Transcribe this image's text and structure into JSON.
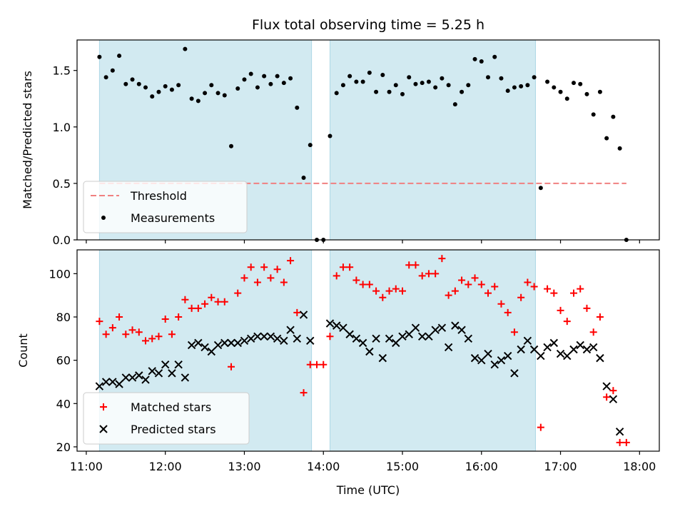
{
  "title": "Flux total observing time = 5.25 h",
  "xlabel": "Time (UTC)",
  "x_ticks": [
    "11:00",
    "12:00",
    "13:00",
    "14:00",
    "15:00",
    "16:00",
    "17:00",
    "18:00"
  ],
  "shade_color": "#add8e6",
  "shaded_intervals": [
    [
      "11:10",
      "13:51"
    ],
    [
      "14:05",
      "16:41"
    ]
  ],
  "chart_data": [
    {
      "type": "scatter",
      "ylabel": "Matched/Predicted stars",
      "xlim": [
        "10:53",
        "18:15"
      ],
      "ylim": [
        0,
        1.77
      ],
      "y_ticks": [
        "0.0",
        "0.5",
        "1.0",
        "1.5"
      ],
      "y_tick_values": [
        0,
        0.5,
        1.0,
        1.5
      ],
      "legend": "lower-left",
      "threshold": {
        "name": "Threshold",
        "value": 0.5,
        "x_range": [
          "11:10",
          "17:50"
        ],
        "color": "#f08080"
      },
      "series": [
        {
          "name": "Measurements",
          "marker": "dot",
          "color": "#000000",
          "points": [
            [
              "11:10",
              1.62
            ],
            [
              "11:15",
              1.44
            ],
            [
              "11:20",
              1.5
            ],
            [
              "11:25",
              1.63
            ],
            [
              "11:30",
              1.38
            ],
            [
              "11:35",
              1.42
            ],
            [
              "11:40",
              1.38
            ],
            [
              "11:45",
              1.35
            ],
            [
              "11:50",
              1.27
            ],
            [
              "11:55",
              1.31
            ],
            [
              "12:00",
              1.36
            ],
            [
              "12:05",
              1.33
            ],
            [
              "12:10",
              1.37
            ],
            [
              "12:15",
              1.69
            ],
            [
              "12:20",
              1.25
            ],
            [
              "12:25",
              1.23
            ],
            [
              "12:30",
              1.3
            ],
            [
              "12:35",
              1.37
            ],
            [
              "12:40",
              1.3
            ],
            [
              "12:45",
              1.28
            ],
            [
              "12:50",
              0.83
            ],
            [
              "12:55",
              1.34
            ],
            [
              "13:00",
              1.42
            ],
            [
              "13:05",
              1.47
            ],
            [
              "13:10",
              1.35
            ],
            [
              "13:15",
              1.45
            ],
            [
              "13:20",
              1.38
            ],
            [
              "13:25",
              1.45
            ],
            [
              "13:30",
              1.39
            ],
            [
              "13:35",
              1.43
            ],
            [
              "13:40",
              1.17
            ],
            [
              "13:45",
              0.55
            ],
            [
              "13:50",
              0.84
            ],
            [
              "13:55",
              0.0
            ],
            [
              "14:00",
              0.0
            ],
            [
              "14:05",
              0.92
            ],
            [
              "14:10",
              1.3
            ],
            [
              "14:15",
              1.37
            ],
            [
              "14:20",
              1.45
            ],
            [
              "14:25",
              1.4
            ],
            [
              "14:30",
              1.4
            ],
            [
              "14:35",
              1.48
            ],
            [
              "14:40",
              1.31
            ],
            [
              "14:45",
              1.46
            ],
            [
              "14:50",
              1.31
            ],
            [
              "14:55",
              1.37
            ],
            [
              "15:00",
              1.29
            ],
            [
              "15:05",
              1.44
            ],
            [
              "15:10",
              1.38
            ],
            [
              "15:15",
              1.39
            ],
            [
              "15:20",
              1.4
            ],
            [
              "15:25",
              1.35
            ],
            [
              "15:30",
              1.43
            ],
            [
              "15:35",
              1.37
            ],
            [
              "15:40",
              1.2
            ],
            [
              "15:45",
              1.31
            ],
            [
              "15:50",
              1.37
            ],
            [
              "15:55",
              1.6
            ],
            [
              "16:00",
              1.58
            ],
            [
              "16:05",
              1.44
            ],
            [
              "16:10",
              1.62
            ],
            [
              "16:15",
              1.43
            ],
            [
              "16:20",
              1.32
            ],
            [
              "16:25",
              1.35
            ],
            [
              "16:30",
              1.36
            ],
            [
              "16:35",
              1.37
            ],
            [
              "16:40",
              1.44
            ],
            [
              "16:45",
              0.46
            ],
            [
              "16:50",
              1.4
            ],
            [
              "16:55",
              1.35
            ],
            [
              "17:00",
              1.31
            ],
            [
              "17:05",
              1.25
            ],
            [
              "17:10",
              1.39
            ],
            [
              "17:15",
              1.38
            ],
            [
              "17:20",
              1.29
            ],
            [
              "17:25",
              1.11
            ],
            [
              "17:30",
              1.31
            ],
            [
              "17:35",
              0.9
            ],
            [
              "17:40",
              1.09
            ],
            [
              "17:45",
              0.81
            ],
            [
              "17:50",
              0.0
            ]
          ]
        }
      ]
    },
    {
      "type": "scatter",
      "ylabel": "Count",
      "xlim": [
        "10:53",
        "18:15"
      ],
      "ylim": [
        18,
        111
      ],
      "y_ticks": [
        "20",
        "40",
        "60",
        "80",
        "100"
      ],
      "y_tick_values": [
        20,
        40,
        60,
        80,
        100
      ],
      "legend": "lower-left",
      "series": [
        {
          "name": "Matched stars",
          "marker": "plus",
          "color": "#ff0000",
          "points": [
            [
              "11:10",
              78
            ],
            [
              "11:15",
              72
            ],
            [
              "11:20",
              75
            ],
            [
              "11:25",
              80
            ],
            [
              "11:30",
              72
            ],
            [
              "11:35",
              74
            ],
            [
              "11:40",
              73
            ],
            [
              "11:45",
              69
            ],
            [
              "11:50",
              70
            ],
            [
              "11:55",
              71
            ],
            [
              "12:00",
              79
            ],
            [
              "12:05",
              72
            ],
            [
              "12:10",
              80
            ],
            [
              "12:15",
              88
            ],
            [
              "12:20",
              84
            ],
            [
              "12:25",
              84
            ],
            [
              "12:30",
              86
            ],
            [
              "12:35",
              89
            ],
            [
              "12:40",
              87
            ],
            [
              "12:45",
              87
            ],
            [
              "12:50",
              57
            ],
            [
              "12:55",
              91
            ],
            [
              "13:00",
              98
            ],
            [
              "13:05",
              103
            ],
            [
              "13:10",
              96
            ],
            [
              "13:15",
              103
            ],
            [
              "13:20",
              98
            ],
            [
              "13:25",
              102
            ],
            [
              "13:30",
              96
            ],
            [
              "13:35",
              106
            ],
            [
              "13:40",
              82
            ],
            [
              "13:45",
              45
            ],
            [
              "13:50",
              58
            ],
            [
              "13:55",
              58
            ],
            [
              "14:00",
              58
            ],
            [
              "14:05",
              71
            ],
            [
              "14:10",
              99
            ],
            [
              "14:15",
              103
            ],
            [
              "14:20",
              103
            ],
            [
              "14:25",
              97
            ],
            [
              "14:30",
              95
            ],
            [
              "14:35",
              95
            ],
            [
              "14:40",
              92
            ],
            [
              "14:45",
              89
            ],
            [
              "14:50",
              92
            ],
            [
              "14:55",
              93
            ],
            [
              "15:00",
              92
            ],
            [
              "15:05",
              104
            ],
            [
              "15:10",
              104
            ],
            [
              "15:15",
              99
            ],
            [
              "15:20",
              100
            ],
            [
              "15:25",
              100
            ],
            [
              "15:30",
              107
            ],
            [
              "15:35",
              90
            ],
            [
              "15:40",
              92
            ],
            [
              "15:45",
              97
            ],
            [
              "15:50",
              95
            ],
            [
              "15:55",
              98
            ],
            [
              "16:00",
              95
            ],
            [
              "16:05",
              91
            ],
            [
              "16:10",
              94
            ],
            [
              "16:15",
              86
            ],
            [
              "16:20",
              82
            ],
            [
              "16:25",
              73
            ],
            [
              "16:30",
              89
            ],
            [
              "16:35",
              96
            ],
            [
              "16:40",
              94
            ],
            [
              "16:45",
              29
            ],
            [
              "16:50",
              93
            ],
            [
              "16:55",
              91
            ],
            [
              "17:00",
              83
            ],
            [
              "17:05",
              78
            ],
            [
              "17:10",
              91
            ],
            [
              "17:15",
              93
            ],
            [
              "17:20",
              84
            ],
            [
              "17:25",
              73
            ],
            [
              "17:30",
              80
            ],
            [
              "17:35",
              43
            ],
            [
              "17:40",
              46
            ],
            [
              "17:45",
              22
            ],
            [
              "17:50",
              22
            ]
          ]
        },
        {
          "name": "Predicted stars",
          "marker": "x",
          "color": "#000000",
          "points": [
            [
              "11:10",
              48
            ],
            [
              "11:15",
              50
            ],
            [
              "11:20",
              50
            ],
            [
              "11:25",
              49
            ],
            [
              "11:30",
              52
            ],
            [
              "11:35",
              52
            ],
            [
              "11:40",
              53
            ],
            [
              "11:45",
              51
            ],
            [
              "11:50",
              55
            ],
            [
              "11:55",
              54
            ],
            [
              "12:00",
              58
            ],
            [
              "12:05",
              54
            ],
            [
              "12:10",
              58
            ],
            [
              "12:15",
              52
            ],
            [
              "12:20",
              67
            ],
            [
              "12:25",
              68
            ],
            [
              "12:30",
              66
            ],
            [
              "12:35",
              64
            ],
            [
              "12:40",
              67
            ],
            [
              "12:45",
              68
            ],
            [
              "12:50",
              68
            ],
            [
              "12:55",
              68
            ],
            [
              "13:00",
              69
            ],
            [
              "13:05",
              70
            ],
            [
              "13:10",
              71
            ],
            [
              "13:15",
              71
            ],
            [
              "13:20",
              71
            ],
            [
              "13:25",
              70
            ],
            [
              "13:30",
              69
            ],
            [
              "13:35",
              74
            ],
            [
              "13:40",
              70
            ],
            [
              "13:45",
              81
            ],
            [
              "13:50",
              69
            ],
            [
              "14:05",
              77
            ],
            [
              "14:10",
              76
            ],
            [
              "14:15",
              75
            ],
            [
              "14:20",
              72
            ],
            [
              "14:25",
              70
            ],
            [
              "14:30",
              68
            ],
            [
              "14:35",
              64
            ],
            [
              "14:40",
              70
            ],
            [
              "14:45",
              61
            ],
            [
              "14:50",
              70
            ],
            [
              "14:55",
              68
            ],
            [
              "15:00",
              71
            ],
            [
              "15:05",
              72
            ],
            [
              "15:10",
              75
            ],
            [
              "15:15",
              71
            ],
            [
              "15:20",
              71
            ],
            [
              "15:25",
              74
            ],
            [
              "15:30",
              75
            ],
            [
              "15:35",
              66
            ],
            [
              "15:40",
              76
            ],
            [
              "15:45",
              74
            ],
            [
              "15:50",
              70
            ],
            [
              "15:55",
              61
            ],
            [
              "16:00",
              60
            ],
            [
              "16:05",
              63
            ],
            [
              "16:10",
              58
            ],
            [
              "16:15",
              60
            ],
            [
              "16:20",
              62
            ],
            [
              "16:25",
              54
            ],
            [
              "16:30",
              65
            ],
            [
              "16:35",
              69
            ],
            [
              "16:40",
              65
            ],
            [
              "16:45",
              62
            ],
            [
              "16:50",
              66
            ],
            [
              "16:55",
              68
            ],
            [
              "17:00",
              63
            ],
            [
              "17:05",
              62
            ],
            [
              "17:10",
              65
            ],
            [
              "17:15",
              67
            ],
            [
              "17:20",
              65
            ],
            [
              "17:25",
              66
            ],
            [
              "17:30",
              61
            ],
            [
              "17:35",
              48
            ],
            [
              "17:40",
              42
            ],
            [
              "17:45",
              27
            ]
          ]
        }
      ]
    }
  ]
}
